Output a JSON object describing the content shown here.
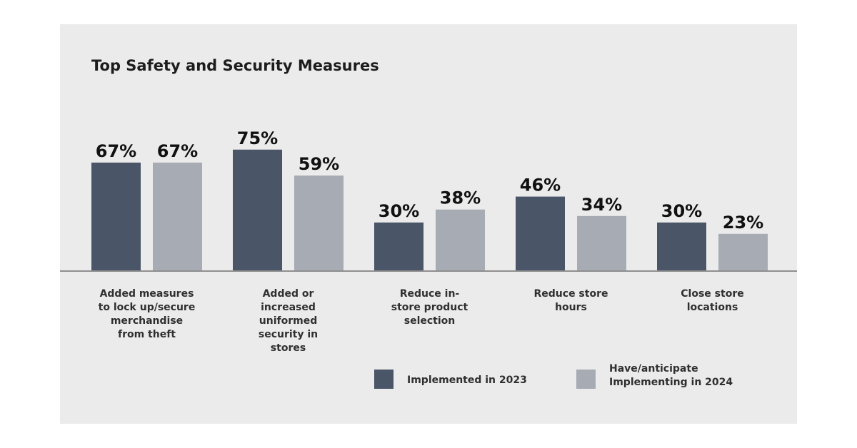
{
  "chart_data": {
    "type": "bar",
    "title": "Top Safety and Security Measures",
    "categories": [
      "Added measures to lock up/secure merchandise from theft",
      "Added or increased uniformed security in stores",
      "Reduce in-store product selection",
      "Reduce store hours",
      "Close store locations"
    ],
    "series": [
      {
        "name": "Implemented in 2023",
        "values": [
          67,
          75,
          30,
          46,
          30
        ],
        "labels": [
          "67%",
          "75%",
          "30%",
          "46%",
          "30%"
        ],
        "color": "#4a5568"
      },
      {
        "name": "Have/anticipate Implementing in 2024",
        "values": [
          67,
          59,
          38,
          34,
          23
        ],
        "labels": [
          "67%",
          "59%",
          "38%",
          "34%",
          "23%"
        ],
        "color": "#a7abb3"
      }
    ],
    "category_lines": [
      [
        "Added measures",
        "to lock up/secure",
        "merchandise",
        "from theft"
      ],
      [
        "Added or",
        "increased",
        "uniformed",
        "security in",
        "stores"
      ],
      [
        "Reduce in-",
        "store product",
        "selection"
      ],
      [
        "Reduce store",
        "hours"
      ],
      [
        "Close store",
        "locations"
      ]
    ],
    "legend_lines": [
      [
        "Implemented in 2023"
      ],
      [
        "Have/anticipate",
        "Implementing in 2024"
      ]
    ],
    "ylim": [
      0,
      100
    ],
    "grid": false,
    "legend_position": "bottom-right",
    "colors": {
      "background": "#ebebeb",
      "axis": "#8f8f8f"
    }
  }
}
